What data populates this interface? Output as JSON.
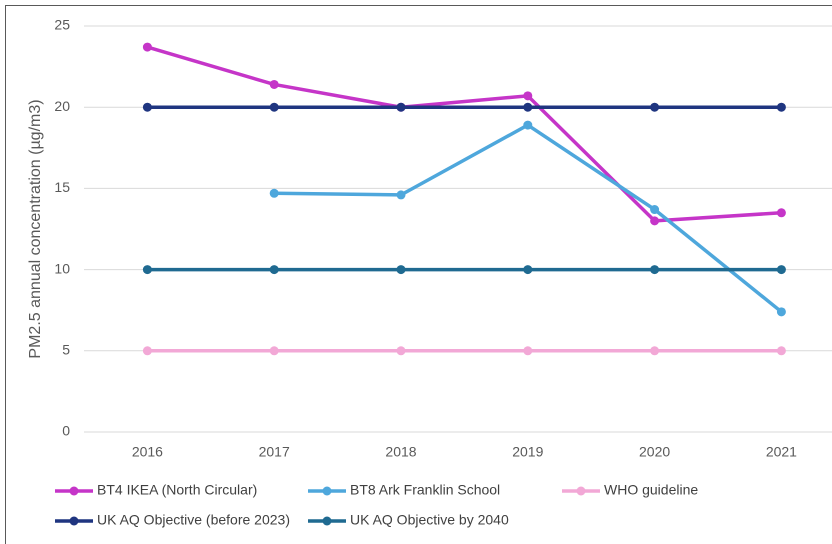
{
  "chart_data": {
    "type": "line",
    "y_label": "PM2.5 annual concentration (µg/m3)",
    "categories": [
      "2016",
      "2017",
      "2018",
      "2019",
      "2020",
      "2021"
    ],
    "series": [
      {
        "name": "BT4 IKEA (North Circular)",
        "color": "#c535c8",
        "values": [
          23.7,
          21.4,
          20.0,
          20.7,
          13.0,
          13.5
        ]
      },
      {
        "name": "BT8 Ark Franklin School",
        "color": "#4ea7dc",
        "values": [
          null,
          14.7,
          14.6,
          18.9,
          13.7,
          7.4
        ]
      },
      {
        "name": "WHO guideline",
        "color": "#f2a8d6",
        "values": [
          5,
          5,
          5,
          5,
          5,
          5
        ]
      },
      {
        "name": "UK AQ Objective (before 2023)",
        "color": "#1f3580",
        "values": [
          20,
          20,
          20,
          20,
          20,
          20
        ]
      },
      {
        "name": "UK AQ Objective by 2040",
        "color": "#1f6a91",
        "values": [
          10,
          10,
          10,
          10,
          10,
          10
        ]
      }
    ],
    "ylim": [
      0,
      25
    ],
    "yticks": [
      0,
      5,
      10,
      15,
      20,
      25
    ],
    "grid": true,
    "legend": "bottom"
  }
}
